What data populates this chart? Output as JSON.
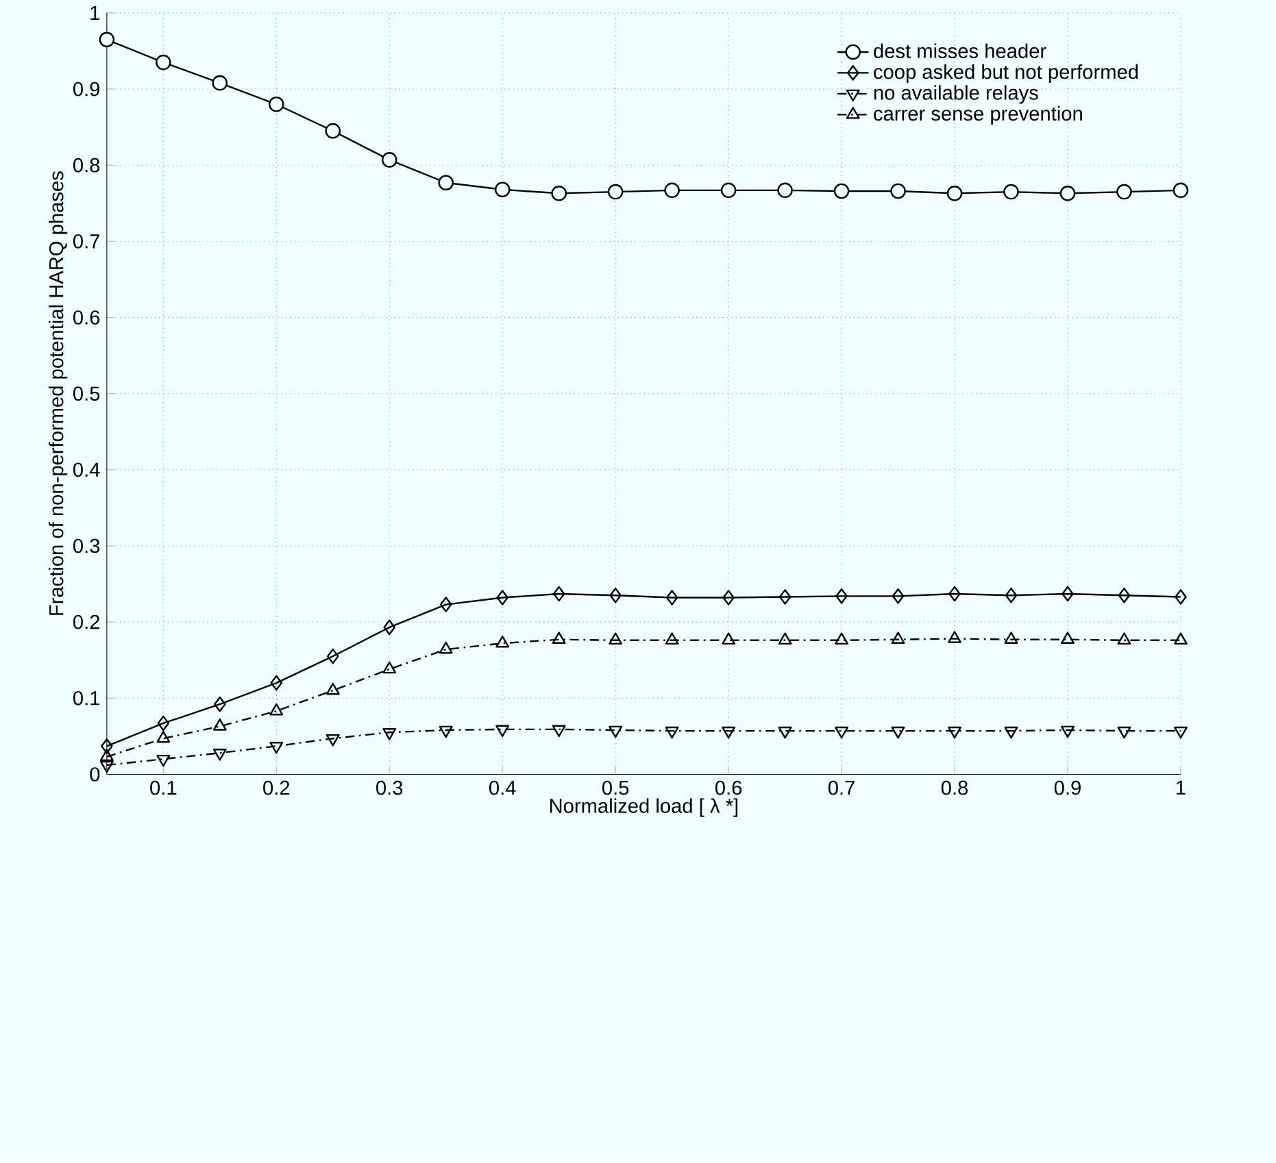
{
  "chart_data": {
    "type": "line",
    "xlabel": "Normalized load [ λ *]",
    "ylabel": "Fraction of non-performed potential HARQ phases",
    "x": [
      0.05,
      0.1,
      0.15,
      0.2,
      0.25,
      0.3,
      0.35,
      0.4,
      0.45,
      0.5,
      0.55,
      0.6,
      0.65,
      0.7,
      0.75,
      0.8,
      0.85,
      0.9,
      0.95,
      1
    ],
    "series": [
      {
        "name": "dest misses header",
        "color": "#000000",
        "marker": "circle",
        "line_style": "solid",
        "values": [
          0.965,
          0.935,
          0.908,
          0.88,
          0.845,
          0.807,
          0.777,
          0.768,
          0.763,
          0.765,
          0.767,
          0.767,
          0.767,
          0.766,
          0.766,
          0.763,
          0.765,
          0.763,
          0.765,
          0.767
        ]
      },
      {
        "name": "coop asked but not performed",
        "color": "#000000",
        "marker": "diamond",
        "line_style": "solid",
        "values": [
          0.037,
          0.067,
          0.092,
          0.12,
          0.155,
          0.193,
          0.223,
          0.232,
          0.237,
          0.235,
          0.232,
          0.232,
          0.233,
          0.234,
          0.234,
          0.237,
          0.235,
          0.237,
          0.235,
          0.233
        ]
      },
      {
        "name": "no available relays",
        "color": "#000000",
        "marker": "triangle-down",
        "line_style": "dashdot",
        "values": [
          0.012,
          0.02,
          0.028,
          0.037,
          0.047,
          0.055,
          0.058,
          0.059,
          0.059,
          0.058,
          0.057,
          0.057,
          0.057,
          0.057,
          0.057,
          0.057,
          0.057,
          0.058,
          0.057,
          0.057
        ]
      },
      {
        "name": "carrer sense prevention",
        "color": "#000000",
        "marker": "triangle",
        "line_style": "dashdot",
        "values": [
          0.023,
          0.047,
          0.063,
          0.083,
          0.11,
          0.138,
          0.164,
          0.172,
          0.177,
          0.176,
          0.176,
          0.176,
          0.176,
          0.176,
          0.177,
          0.178,
          0.177,
          0.177,
          0.176,
          0.176
        ]
      }
    ],
    "xlim": [
      0.05,
      1
    ],
    "ylim": [
      0,
      1
    ],
    "xticks": [
      0.1,
      0.2,
      0.3,
      0.4,
      0.5,
      0.6,
      0.7,
      0.8,
      0.9,
      1
    ],
    "yticks": [
      0,
      0.1,
      0.2,
      0.3,
      0.4,
      0.5,
      0.6,
      0.7,
      0.8,
      0.9,
      1
    ],
    "grid": true,
    "legend": "top right"
  }
}
